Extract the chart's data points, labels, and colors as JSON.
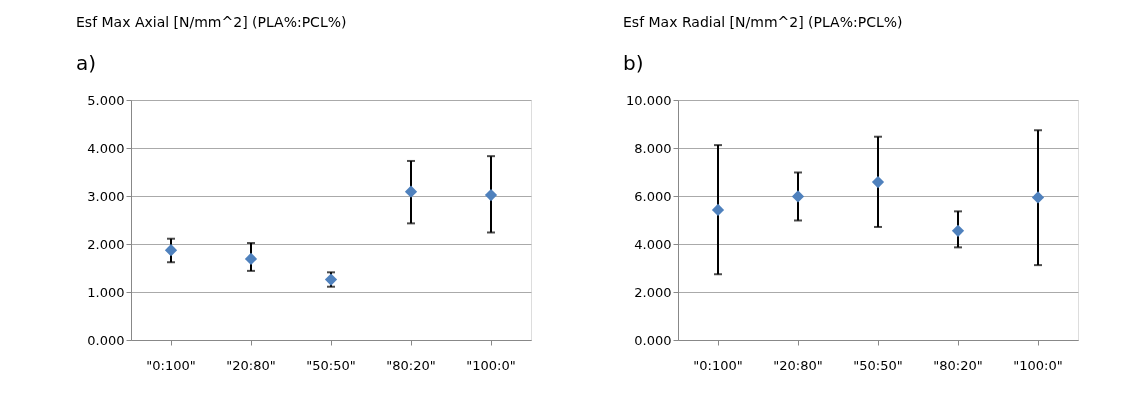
{
  "chart_data": [
    {
      "type": "scatter",
      "title": "Esf Max Axial [N/mm^2] (PLA%:PCL%)",
      "annotations": [
        "a)"
      ],
      "categories": [
        "\"0:100\"",
        "\"20:80\"",
        "\"50:50\"",
        "\"80:20\"",
        "\"100:0\""
      ],
      "series": [
        {
          "color": "#4f81bd",
          "values": [
            1.87,
            1.69,
            1.26,
            3.09,
            3.02
          ],
          "errors": [
            [
              1.62,
              2.11
            ],
            [
              1.44,
              2.02
            ],
            [
              1.11,
              1.41
            ],
            [
              2.43,
              3.73
            ],
            [
              2.24,
              3.83
            ]
          ]
        }
      ],
      "ylim": [
        0,
        5
      ],
      "yticks": [
        {
          "value": 0,
          "label": "0.000"
        },
        {
          "value": 1,
          "label": "1.000"
        },
        {
          "value": 2,
          "label": "2.000"
        },
        {
          "value": 3,
          "label": "3.000"
        },
        {
          "value": 4,
          "label": "4.000"
        },
        {
          "value": 5,
          "label": "5.000"
        }
      ],
      "grid": "y",
      "marker": "diamond"
    },
    {
      "type": "scatter",
      "title": "Esf Max Radial [N/mm^2] (PLA%:PCL%)",
      "annotations": [
        "b)"
      ],
      "categories": [
        "\"0:100\"",
        "\"20:80\"",
        "\"50:50\"",
        "\"80:20\"",
        "\"100:0\""
      ],
      "series": [
        {
          "color": "#4f81bd",
          "values": [
            5.42,
            5.98,
            6.58,
            4.55,
            5.94
          ],
          "errors": [
            [
              2.74,
              8.12
            ],
            [
              4.98,
              6.98
            ],
            [
              4.71,
              8.47
            ],
            [
              3.86,
              5.36
            ],
            [
              3.12,
              8.74
            ]
          ]
        }
      ],
      "ylim": [
        0,
        10
      ],
      "yticks": [
        {
          "value": 0,
          "label": "0.000"
        },
        {
          "value": 2,
          "label": "2.000"
        },
        {
          "value": 4,
          "label": "4.000"
        },
        {
          "value": 6,
          "label": "6.000"
        },
        {
          "value": 8,
          "label": "8.000"
        },
        {
          "value": 10,
          "label": "10.000"
        }
      ],
      "grid": "y",
      "marker": "diamond"
    }
  ]
}
